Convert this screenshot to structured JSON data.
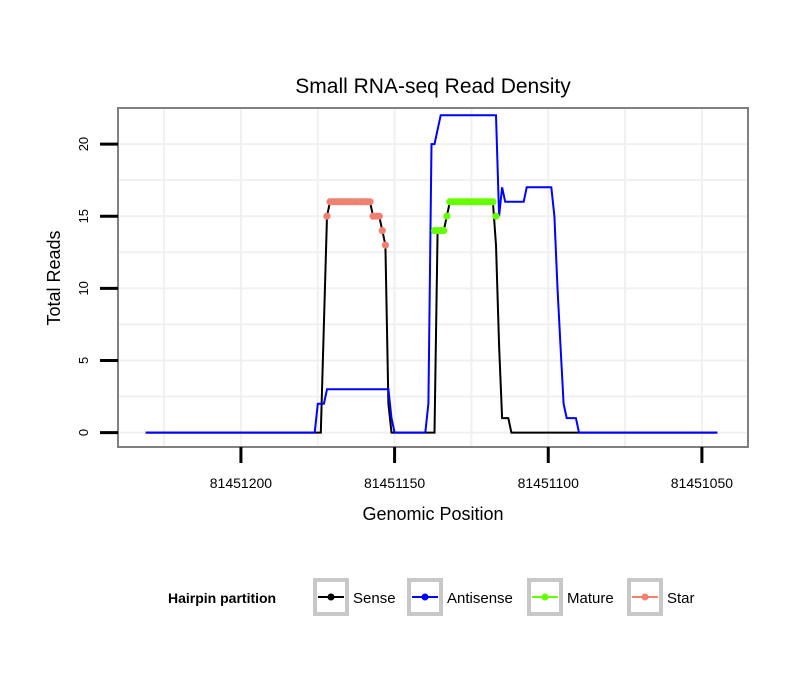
{
  "chart_data": {
    "type": "line",
    "title": "Small RNA-seq Read Density",
    "xlabel": "Genomic Position",
    "ylabel": "Total Reads",
    "xlim": [
      81451240,
      81451035
    ],
    "ylim": [
      -1,
      22.5
    ],
    "x_reversed": true,
    "xticks": [
      81451200,
      81451150,
      81451100,
      81451050
    ],
    "xtick_labels": [
      "81451200",
      "81451150",
      "81451100",
      "81451050"
    ],
    "yticks": [
      0,
      5,
      10,
      15,
      20
    ],
    "ytick_labels": [
      "0",
      "5",
      "10",
      "15",
      "20"
    ],
    "grid": true,
    "legend": {
      "title": "Hairpin partition",
      "position": "bottom",
      "entries": [
        "Sense",
        "Antisense",
        "Mature",
        "Star"
      ]
    },
    "series": [
      {
        "name": "Sense",
        "color": "#000000",
        "points": [
          [
            81451231,
            0
          ],
          [
            81451174,
            0
          ],
          [
            81451172,
            15
          ],
          [
            81451171,
            16
          ],
          [
            81451158,
            16
          ],
          [
            81451157,
            15
          ],
          [
            81451155,
            15
          ],
          [
            81451154,
            14
          ],
          [
            81451153,
            13
          ],
          [
            81451152,
            2
          ],
          [
            81451151,
            0
          ],
          [
            81451137,
            0
          ],
          [
            81451136,
            14
          ],
          [
            81451135,
            14
          ],
          [
            81451134,
            14
          ],
          [
            81451133,
            15
          ],
          [
            81451132,
            16
          ],
          [
            81451118,
            16
          ],
          [
            81451117,
            13
          ],
          [
            81451116,
            6
          ],
          [
            81451115,
            1
          ],
          [
            81451113,
            1
          ],
          [
            81451112,
            0
          ],
          [
            81451045,
            0
          ]
        ]
      },
      {
        "name": "Antisense",
        "color": "#0000ff",
        "points": [
          [
            81451231,
            0
          ],
          [
            81451176,
            0
          ],
          [
            81451175,
            2
          ],
          [
            81451173,
            2
          ],
          [
            81451172,
            3
          ],
          [
            81451152,
            3
          ],
          [
            81451151,
            1
          ],
          [
            81451150,
            0
          ],
          [
            81451140,
            0
          ],
          [
            81451139,
            2
          ],
          [
            81451138,
            20
          ],
          [
            81451137,
            20
          ],
          [
            81451135,
            22
          ],
          [
            81451117,
            22
          ],
          [
            81451116,
            15
          ],
          [
            81451115,
            17
          ],
          [
            81451114,
            16
          ],
          [
            81451108,
            16
          ],
          [
            81451107,
            17
          ],
          [
            81451099,
            17
          ],
          [
            81451098,
            15
          ],
          [
            81451097,
            10
          ],
          [
            81451096,
            6
          ],
          [
            81451095,
            2
          ],
          [
            81451094,
            1
          ],
          [
            81451091,
            1
          ],
          [
            81451090,
            0
          ],
          [
            81451045,
            0
          ]
        ]
      },
      {
        "name": "Mature",
        "color": "#66ff00",
        "points": [
          [
            81451137,
            14
          ],
          [
            81451136,
            14
          ],
          [
            81451135,
            14
          ],
          [
            81451134,
            14
          ],
          [
            81451133,
            15
          ],
          [
            81451132,
            16
          ],
          [
            81451131,
            16
          ],
          [
            81451130,
            16
          ],
          [
            81451129,
            16
          ],
          [
            81451128,
            16
          ],
          [
            81451127,
            16
          ],
          [
            81451126,
            16
          ],
          [
            81451125,
            16
          ],
          [
            81451124,
            16
          ],
          [
            81451123,
            16
          ],
          [
            81451122,
            16
          ],
          [
            81451121,
            16
          ],
          [
            81451120,
            16
          ],
          [
            81451119,
            16
          ],
          [
            81451118,
            16
          ],
          [
            81451117,
            15
          ]
        ]
      },
      {
        "name": "Star",
        "color": "#f08070",
        "points": [
          [
            81451172,
            15
          ],
          [
            81451171,
            16
          ],
          [
            81451170,
            16
          ],
          [
            81451169,
            16
          ],
          [
            81451168,
            16
          ],
          [
            81451167,
            16
          ],
          [
            81451166,
            16
          ],
          [
            81451165,
            16
          ],
          [
            81451164,
            16
          ],
          [
            81451163,
            16
          ],
          [
            81451162,
            16
          ],
          [
            81451161,
            16
          ],
          [
            81451160,
            16
          ],
          [
            81451159,
            16
          ],
          [
            81451158,
            16
          ],
          [
            81451157,
            15
          ],
          [
            81451156,
            15
          ],
          [
            81451155,
            15
          ],
          [
            81451154,
            14
          ],
          [
            81451153,
            13
          ]
        ]
      }
    ]
  }
}
